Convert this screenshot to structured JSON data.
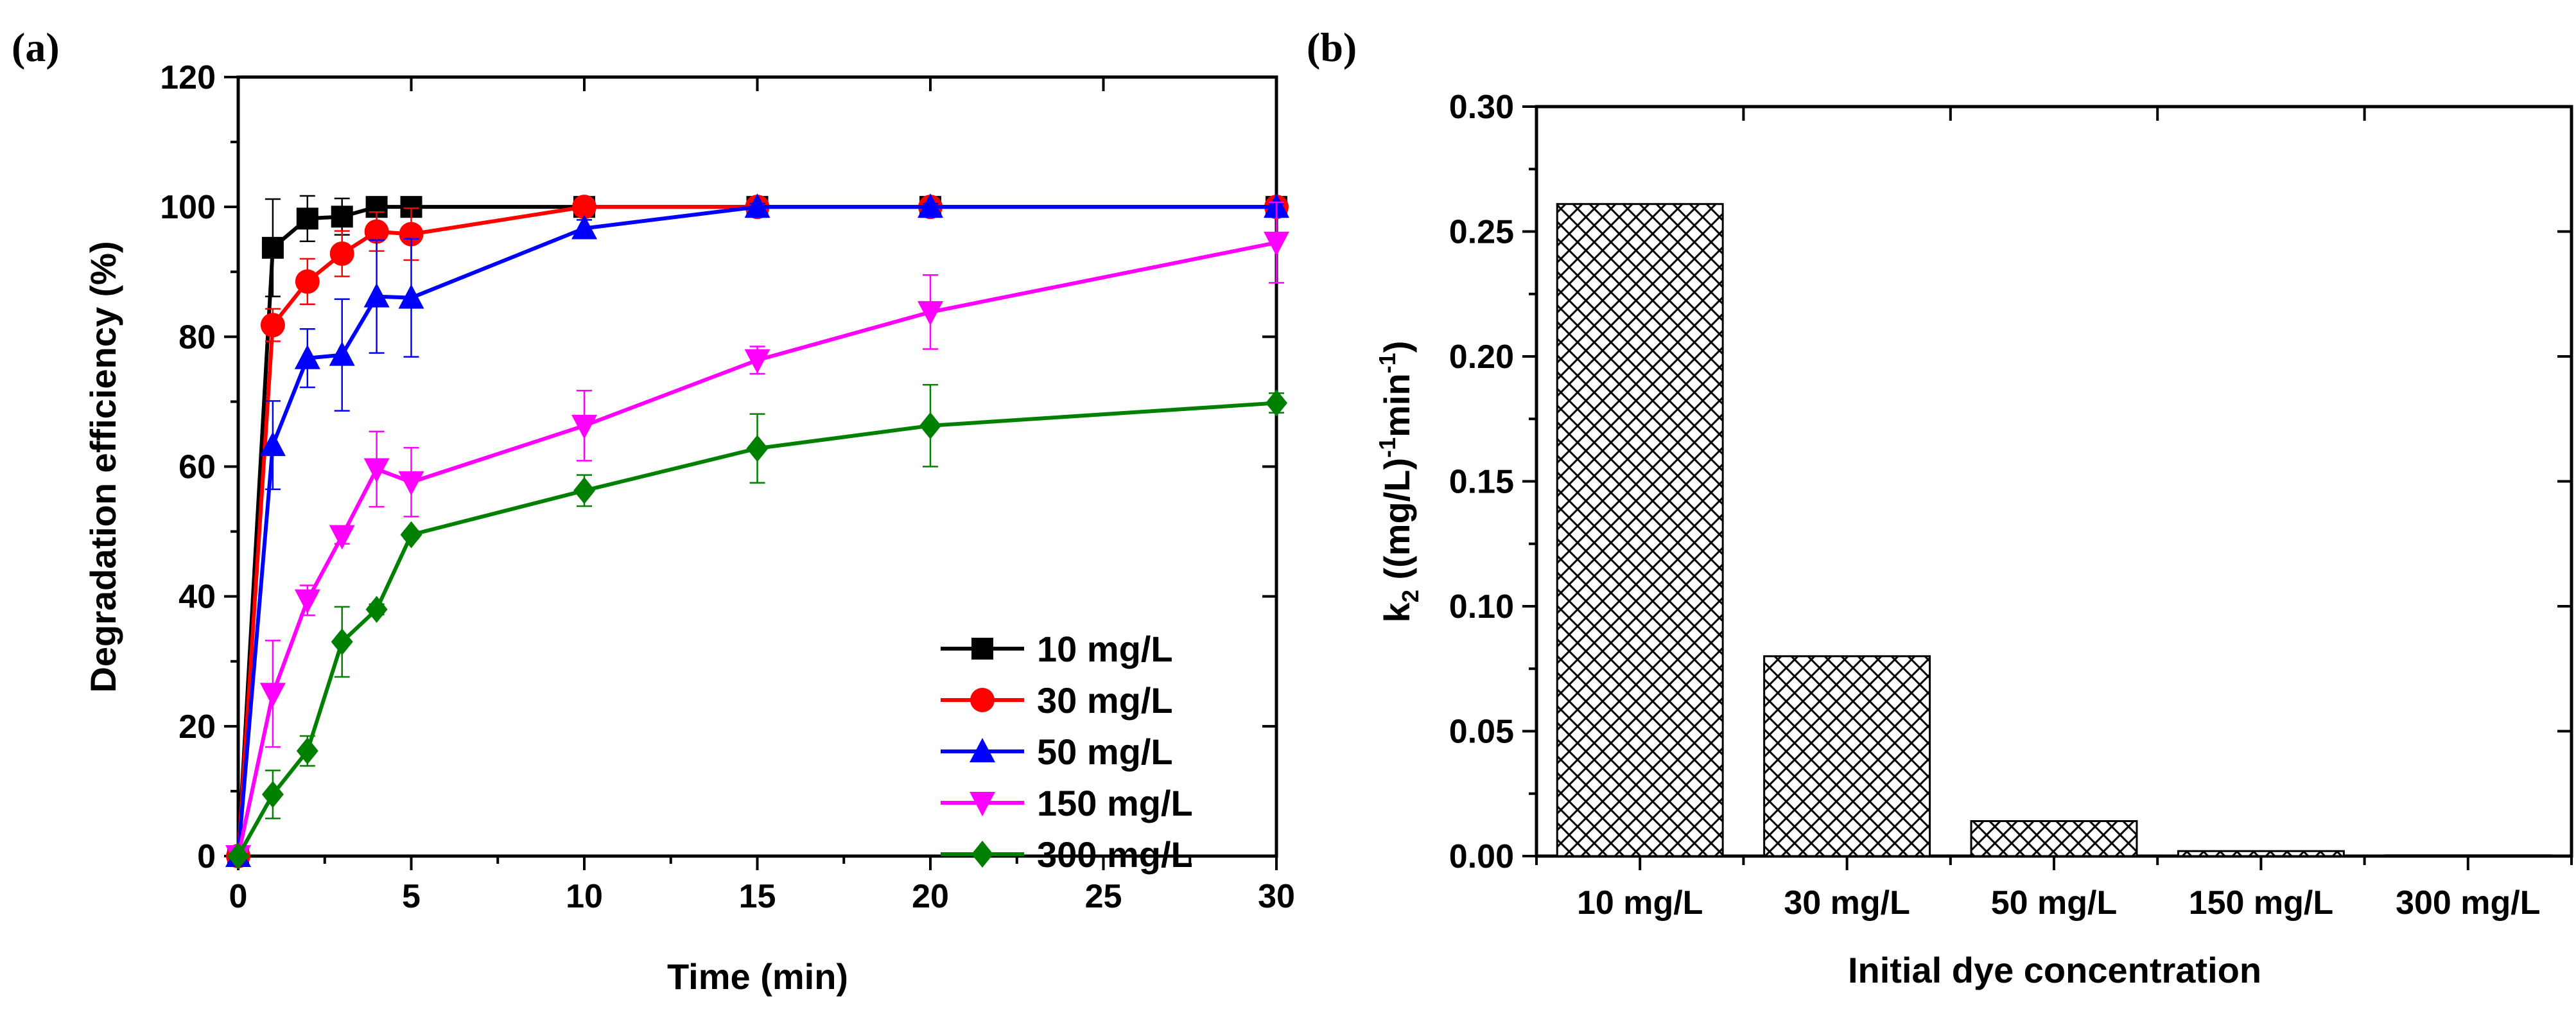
{
  "chart_data": [
    {
      "type": "line",
      "panel_label": "(a)",
      "xlabel": "Time (min)",
      "ylabel": "Degradation efficiency (%)",
      "xlim": [
        0,
        30
      ],
      "ylim": [
        0,
        120
      ],
      "xticks": [
        0,
        5,
        10,
        15,
        20,
        25,
        30
      ],
      "yticks": [
        0,
        20,
        40,
        60,
        80,
        100,
        120
      ],
      "legend_position": "bottom-right",
      "x": [
        0,
        1,
        2,
        3,
        4,
        5,
        10,
        15,
        20,
        30
      ],
      "series": [
        {
          "name": "10 mg/L",
          "color": "#000000",
          "marker": "square",
          "values": [
            0,
            93.7,
            98.2,
            98.5,
            100,
            100,
            100,
            100,
            100,
            100
          ],
          "errors": [
            0,
            7.5,
            3.5,
            2.8,
            1.5,
            1.5,
            0,
            0,
            0,
            0
          ]
        },
        {
          "name": "30 mg/L",
          "color": "#ff0000",
          "marker": "circle",
          "values": [
            0,
            81.8,
            88.5,
            92.8,
            96.2,
            95.8,
            100,
            100,
            100,
            100
          ],
          "errors": [
            0,
            2.5,
            3.5,
            3.5,
            3.0,
            4.0,
            0.5,
            0.5,
            0.5,
            0.5
          ]
        },
        {
          "name": "50 mg/L",
          "color": "#0000ff",
          "marker": "triangle-up",
          "values": [
            0,
            63.3,
            76.7,
            77.2,
            86.2,
            86.0,
            96.7,
            100,
            100,
            100
          ],
          "errors": [
            0,
            6.8,
            4.5,
            8.6,
            8.7,
            9.1,
            1.3,
            0.5,
            0.5,
            0.5
          ]
        },
        {
          "name": "150 mg/L",
          "color": "#ff00ff",
          "marker": "triangle-down",
          "values": [
            0,
            25.0,
            39.4,
            49.3,
            59.6,
            57.6,
            66.3,
            76.4,
            83.8,
            94.5
          ],
          "errors": [
            0,
            8.2,
            2.3,
            1.2,
            5.8,
            5.3,
            5.4,
            2.1,
            5.7,
            6.2
          ]
        },
        {
          "name": "300 mg/L",
          "color": "#008000",
          "marker": "diamond",
          "values": [
            0,
            9.5,
            16.2,
            33.0,
            38.0,
            49.5,
            56.3,
            62.8,
            66.3,
            69.8
          ],
          "errors": [
            0,
            3.7,
            2.3,
            5.4,
            0.8,
            0.6,
            2.4,
            5.3,
            6.3,
            1.5
          ]
        }
      ]
    },
    {
      "type": "bar",
      "panel_label": "(b)",
      "xlabel": "Initial dye concentration",
      "ylabel_main": "k",
      "ylabel_sub": "2",
      "ylabel_rest1": " ((mg/L)",
      "ylabel_sup1": "-1",
      "ylabel_rest2": "min",
      "ylabel_sup2": "-1",
      "ylabel_end": ")",
      "ylim": [
        0,
        0.3
      ],
      "yticks": [
        "0.00",
        "0.05",
        "0.10",
        "0.15",
        "0.20",
        "0.25",
        "0.30"
      ],
      "categories": [
        "10 mg/L",
        "30 mg/L",
        "50 mg/L",
        "150 mg/L",
        "300 mg/L"
      ],
      "values": [
        0.261,
        0.08,
        0.014,
        0.002,
        0.0003
      ],
      "fill": "crosshatch"
    }
  ]
}
